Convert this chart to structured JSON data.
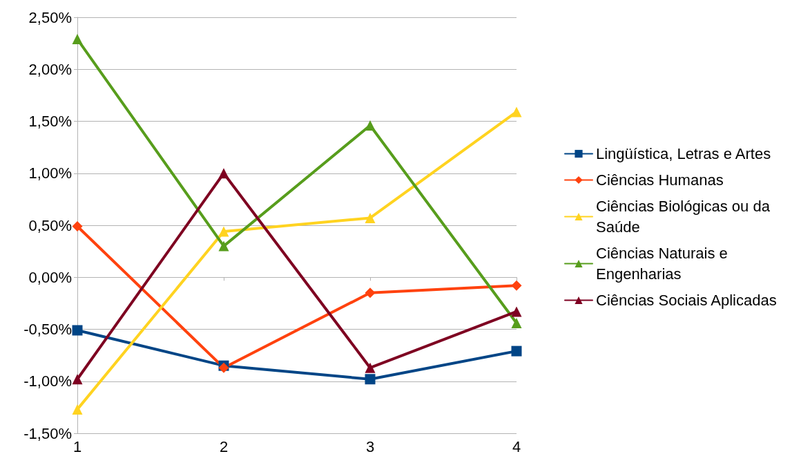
{
  "chart_data": {
    "type": "line",
    "categories": [
      "1",
      "2",
      "3",
      "4"
    ],
    "ylim": [
      -1.5,
      2.5
    ],
    "yticks": [
      {
        "value": -1.5,
        "label": "-1,50%"
      },
      {
        "value": -1,
        "label": "-1,00%"
      },
      {
        "value": -0.5,
        "label": "-0,50%"
      },
      {
        "value": 0,
        "label": "0,00%"
      },
      {
        "value": 0.5,
        "label": "0,50%"
      },
      {
        "value": 1,
        "label": "1,00%"
      },
      {
        "value": 1.5,
        "label": "1,50%"
      },
      {
        "value": 2,
        "label": "2,00%"
      },
      {
        "value": 2.5,
        "label": "2,50%"
      }
    ],
    "grid": "y",
    "legend": "right",
    "line_style": "solid",
    "series": [
      {
        "name": "Lingüística, Letras e Artes",
        "color": "#004586",
        "marker": "square",
        "values": [
          -0.51,
          -0.85,
          -0.98,
          -0.71
        ]
      },
      {
        "name": "Ciências Humanas",
        "color": "#ff420e",
        "marker": "diamond",
        "values": [
          0.49,
          -0.87,
          -0.15,
          -0.08
        ]
      },
      {
        "name": "Ciências Biológicas ou da Saúde",
        "color": "#ffd320",
        "marker": "triangle",
        "values": [
          -1.27,
          0.44,
          0.57,
          1.59
        ]
      },
      {
        "name": "Ciências Naturais e Engenharias",
        "color": "#579d1c",
        "marker": "triangle",
        "values": [
          2.29,
          0.3,
          1.46,
          -0.44
        ]
      },
      {
        "name": "Ciências Sociais Aplicadas",
        "color": "#7e0021",
        "marker": "triangle",
        "values": [
          -0.98,
          1.0,
          -0.87,
          -0.33
        ]
      }
    ]
  }
}
